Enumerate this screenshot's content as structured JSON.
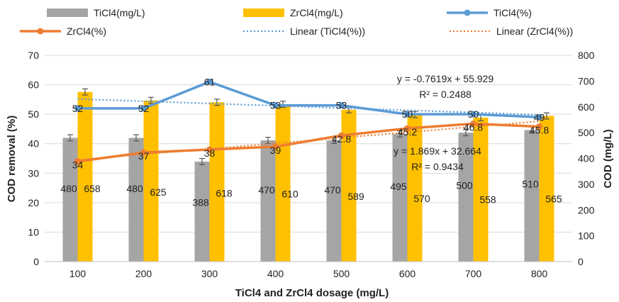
{
  "chart_data": {
    "type": "bar",
    "categories": [
      "100",
      "200",
      "300",
      "400",
      "500",
      "600",
      "700",
      "800"
    ],
    "xlabel": "TiCl4 and ZrCl4 dosage (mg/L)",
    "ylabel_left": "COD removal (%)",
    "ylabel_right": "COD (mg/L)",
    "ylim_left": [
      0,
      70
    ],
    "ylim_right": [
      0,
      800
    ],
    "yticks_left": [
      "0",
      "10",
      "20",
      "30",
      "40",
      "50",
      "60",
      "70"
    ],
    "yticks_right": [
      "0",
      "100",
      "200",
      "300",
      "400",
      "500",
      "600",
      "700",
      "800"
    ],
    "grid": true,
    "legend_position": "top",
    "series": [
      {
        "name": "TiCl4(mg/L)",
        "kind": "bar",
        "axis": "right",
        "color": "#a5a5a5",
        "values": [
          480,
          480,
          388,
          470,
          470,
          495,
          500,
          510
        ],
        "labels": [
          "480",
          "480",
          "388",
          "470",
          "470",
          "495",
          "500",
          "510"
        ],
        "error": [
          12,
          12,
          12,
          12,
          12,
          12,
          12,
          12
        ]
      },
      {
        "name": "ZrCl4(mg/L)",
        "kind": "bar",
        "axis": "right",
        "color": "#ffc000",
        "values": [
          658,
          625,
          618,
          610,
          589,
          570,
          558,
          565
        ],
        "labels": [
          "658",
          "625",
          "618",
          "610",
          "589",
          "570",
          "558",
          "565"
        ],
        "error": [
          12,
          12,
          12,
          12,
          12,
          12,
          12,
          12
        ]
      },
      {
        "name": "TiCl4(%)",
        "kind": "line",
        "axis": "left",
        "color": "#5b9bd5",
        "values": [
          52,
          52,
          61,
          53,
          53,
          50,
          50,
          49
        ],
        "labels": [
          "52",
          "52",
          "61",
          "53",
          "53",
          "50",
          "50",
          "49"
        ]
      },
      {
        "name": "ZrCl4(%)",
        "kind": "line",
        "axis": "left",
        "color": "#ed7d31",
        "values": [
          34,
          37,
          38,
          39,
          42.8,
          45.2,
          46.8,
          45.8
        ],
        "labels": [
          "34",
          "37",
          "38",
          "39",
          "42.8",
          "45.2",
          "46.8",
          "45.8"
        ]
      }
    ],
    "trendlines": [
      {
        "name": "Linear (TiCl4(%))",
        "color": "#5b9bd5",
        "slope": -0.7619,
        "intercept": 55.929,
        "equation": "y = -0.7619x + 55.929",
        "r2": "R² = 0.2488"
      },
      {
        "name": "Linear (ZrCl4(%))",
        "color": "#ed7d31",
        "slope": 1.869,
        "intercept": 32.664,
        "equation": "y = 1.869x + 32.664",
        "r2": "R² = 0.9434"
      }
    ]
  }
}
